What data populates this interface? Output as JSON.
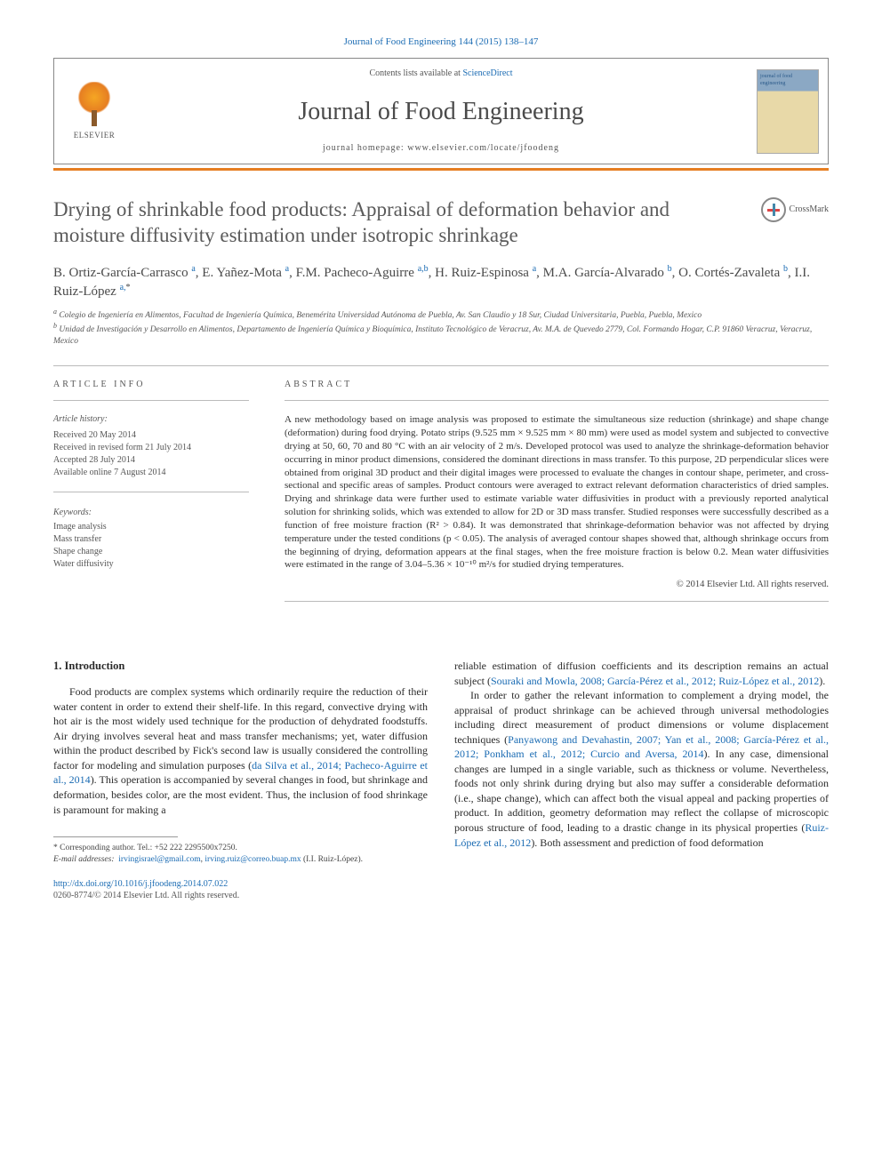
{
  "journal_ref": {
    "text": "Journal of Food Engineering 144 (2015) 138–147",
    "link_color": "#1a6bb3"
  },
  "header": {
    "contents_prefix": "Contents lists available at ",
    "contents_link": "ScienceDirect",
    "journal_name": "Journal of Food Engineering",
    "homepage_prefix": "journal homepage: ",
    "homepage_url": "www.elsevier.com/locate/jfoodeng",
    "publisher": "ELSEVIER",
    "cover_label": "journal of food engineering"
  },
  "title": "Drying of shrinkable food products: Appraisal of deformation behavior and moisture diffusivity estimation under isotropic shrinkage",
  "crossmark": "CrossMark",
  "authors_html": "B. Ortiz-García-Carrasco <sup>a</sup>, E. Yañez-Mota <sup>a</sup>, F.M. Pacheco-Aguirre <sup>a,b</sup>, H. Ruiz-Espinosa <sup>a</sup>, M.A. García-Alvarado <sup>b</sup>, O. Cortés-Zavaleta <sup>b</sup>, I.I. Ruiz-López <sup>a,*</sup>",
  "affiliations": {
    "a": "Colegio de Ingeniería en Alimentos, Facultad de Ingeniería Química, Benemérita Universidad Autónoma de Puebla, Av. San Claudio y 18 Sur, Ciudad Universitaria, Puebla, Puebla, Mexico",
    "b": "Unidad de Investigación y Desarrollo en Alimentos, Departamento de Ingeniería Química y Bioquímica, Instituto Tecnológico de Veracruz, Av. M.A. de Quevedo 2779, Col. Formando Hogar, C.P. 91860 Veracruz, Veracruz, Mexico"
  },
  "article_info": {
    "label": "ARTICLE INFO",
    "history_label": "Article history:",
    "history": [
      "Received 20 May 2014",
      "Received in revised form 21 July 2014",
      "Accepted 28 July 2014",
      "Available online 7 August 2014"
    ],
    "keywords_label": "Keywords:",
    "keywords": [
      "Image analysis",
      "Mass transfer",
      "Shape change",
      "Water diffusivity"
    ]
  },
  "abstract": {
    "label": "ABSTRACT",
    "text": "A new methodology based on image analysis was proposed to estimate the simultaneous size reduction (shrinkage) and shape change (deformation) during food drying. Potato strips (9.525 mm × 9.525 mm × 80 mm) were used as model system and subjected to convective drying at 50, 60, 70 and 80 °C with an air velocity of 2 m/s. Developed protocol was used to analyze the shrinkage-deformation behavior occurring in minor product dimensions, considered the dominant directions in mass transfer. To this purpose, 2D perpendicular slices were obtained from original 3D product and their digital images were processed to evaluate the changes in contour shape, perimeter, and cross-sectional and specific areas of samples. Product contours were averaged to extract relevant deformation characteristics of dried samples. Drying and shrinkage data were further used to estimate variable water diffusivities in product with a previously reported analytical solution for shrinking solids, which was extended to allow for 2D or 3D mass transfer. Studied responses were successfully described as a function of free moisture fraction (R² > 0.84). It was demonstrated that shrinkage-deformation behavior was not affected by drying temperature under the tested conditions (p < 0.05). The analysis of averaged contour shapes showed that, although shrinkage occurs from the beginning of drying, deformation appears at the final stages, when the free moisture fraction is below 0.2. Mean water diffusivities were estimated in the range of 3.04–5.36 × 10⁻¹⁰ m²/s for studied drying temperatures.",
    "copyright": "© 2014 Elsevier Ltd. All rights reserved."
  },
  "body": {
    "sec1_heading": "1. Introduction",
    "col1_p1_a": "Food products are complex systems which ordinarily require the reduction of their water content in order to extend their shelf-life. In this regard, convective drying with hot air is the most widely used technique for the production of dehydrated foodstuffs. Air drying involves several heat and mass transfer mechanisms; yet, water diffusion within the product described by Fick's second law is usually considered the controlling factor for modeling and simulation purposes (",
    "col1_link1": "da Silva et al., 2014; Pacheco-Aguirre et al., 2014",
    "col1_p1_b": "). This operation is accompanied by several changes in food, but shrinkage and deformation, besides color, are the most evident. Thus, the inclusion of food shrinkage is paramount for making a",
    "col2_p1_a": "reliable estimation of diffusion coefficients and its description remains an actual subject (",
    "col2_link1": "Souraki and Mowla, 2008; García-Pérez et al., 2012; Ruiz-López et al., 2012",
    "col2_p1_b": ").",
    "col2_p2_a": "In order to gather the relevant information to complement a drying model, the appraisal of product shrinkage can be achieved through universal methodologies including direct measurement of product dimensions or volume displacement techniques (",
    "col2_link2": "Panyawong and Devahastin, 2007; Yan et al., 2008; García-Pérez et al., 2012; Ponkham et al., 2012; Curcio and Aversa, 2014",
    "col2_p2_b": "). In any case, dimensional changes are lumped in a single variable, such as thickness or volume. Nevertheless, foods not only shrink during drying but also may suffer a considerable deformation (i.e., shape change), which can affect both the visual appeal and packing properties of product. In addition, geometry deformation may reflect the collapse of microscopic porous structure of food, leading to a drastic change in its physical properties (",
    "col2_link3": "Ruiz-López et al., 2012",
    "col2_p2_c": "). Both assessment and prediction of food deformation"
  },
  "footnotes": {
    "corr": "* Corresponding author. Tel.: +52 222 2295500x7250.",
    "email_label": "E-mail addresses:",
    "email1": "irvingisrael@gmail.com",
    "email_sep": ", ",
    "email2": "irving.ruiz@correo.buap.mx",
    "email_tail": " (I.I. Ruiz-López)."
  },
  "doi": {
    "url": "http://dx.doi.org/10.1016/j.jfoodeng.2014.07.022",
    "meta": "0260-8774/© 2014 Elsevier Ltd. All rights reserved."
  },
  "colors": {
    "link": "#1a6bb3",
    "accent_bar": "#e67e22",
    "text": "#2b2b2b",
    "muted": "#555555"
  }
}
